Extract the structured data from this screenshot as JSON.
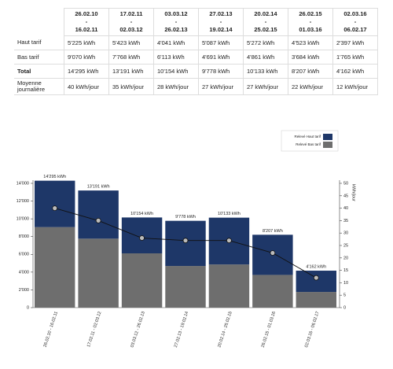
{
  "table": {
    "separator": "-",
    "periods": [
      {
        "start": "26.02.10",
        "end": "16.02.11"
      },
      {
        "start": "17.02.11",
        "end": "02.03.12"
      },
      {
        "start": "03.03.12",
        "end": "26.02.13"
      },
      {
        "start": "27.02.13",
        "end": "19.02.14"
      },
      {
        "start": "20.02.14",
        "end": "25.02.15"
      },
      {
        "start": "26.02.15",
        "end": "01.03.16"
      },
      {
        "start": "02.03.16",
        "end": "06.02.17"
      }
    ],
    "rows": [
      {
        "label": "Haut tarif",
        "cells": [
          "5'225 kWh",
          "5'423 kWh",
          "4'041 kWh",
          "5'087 kWh",
          "5'272 kWh",
          "4'523 kWh",
          "2'397 kWh"
        ]
      },
      {
        "label": "Bas tarif",
        "cells": [
          "9'070 kWh",
          "7'768 kWh",
          "6'113 kWh",
          "4'691 kWh",
          "4'861 kWh",
          "3'684 kWh",
          "1'765 kWh"
        ]
      },
      {
        "label": "Total",
        "cells": [
          "14'295 kWh",
          "13'191 kWh",
          "10'154 kWh",
          "9'778 kWh",
          "10'133 kWh",
          "8'207 kWh",
          "4'162 kWh"
        ]
      },
      {
        "label": "Moyenne journalière",
        "cells": [
          "40 kWh/jour",
          "35 kWh/jour",
          "28 kWh/jour",
          "27 kWh/jour",
          "27 kWh/jour",
          "22 kWh/jour",
          "12 kWh/jour"
        ]
      }
    ]
  },
  "chart_data": {
    "type": "stacked_bar_line",
    "categories": [
      "26.02.10 - 16.02.11",
      "17.02.11 - 02.03.12",
      "03.03.12 - 26.02.13",
      "27.02.13 - 19.02.14",
      "20.02.14 - 25.02.15",
      "26.02.15 - 01.03.16",
      "02.03.16 - 06.02.17"
    ],
    "series": [
      {
        "name": "Relevé Bas tarif",
        "color": "#6e6e6e",
        "values": [
          9070,
          7768,
          6113,
          4691,
          4861,
          3684,
          1765
        ]
      },
      {
        "name": "Relevé Haut tarif",
        "color": "#1e3768",
        "values": [
          5225,
          5423,
          4041,
          5087,
          5272,
          4523,
          2397
        ]
      }
    ],
    "totals": [
      14295,
      13191,
      10154,
      9778,
      10133,
      8207,
      4162
    ],
    "total_labels": [
      "14'295 kWh",
      "13'191 kWh",
      "10'154 kWh",
      "9'778 kWh",
      "10'133 kWh",
      "8'207 kWh",
      "4'162 kWh"
    ],
    "line": {
      "axis": "y2",
      "color": "#111111",
      "values": [
        40,
        35,
        28,
        27,
        27,
        22,
        12
      ]
    },
    "ylim": [
      0,
      14000
    ],
    "yticks": [
      {
        "value": 0,
        "label": "0"
      },
      {
        "value": 2000,
        "label": "2'000"
      },
      {
        "value": 4000,
        "label": "4'000"
      },
      {
        "value": 6000,
        "label": "6'000"
      },
      {
        "value": 8000,
        "label": "8'000"
      },
      {
        "value": 10000,
        "label": "10'000"
      },
      {
        "value": 12000,
        "label": "12'000"
      },
      {
        "value": 14000,
        "label": "14'000"
      }
    ],
    "y2lim": [
      0,
      50
    ],
    "y2ticks": [
      0,
      5,
      10,
      15,
      20,
      25,
      30,
      35,
      40,
      45,
      50
    ],
    "y2label": "kWh/jour"
  }
}
